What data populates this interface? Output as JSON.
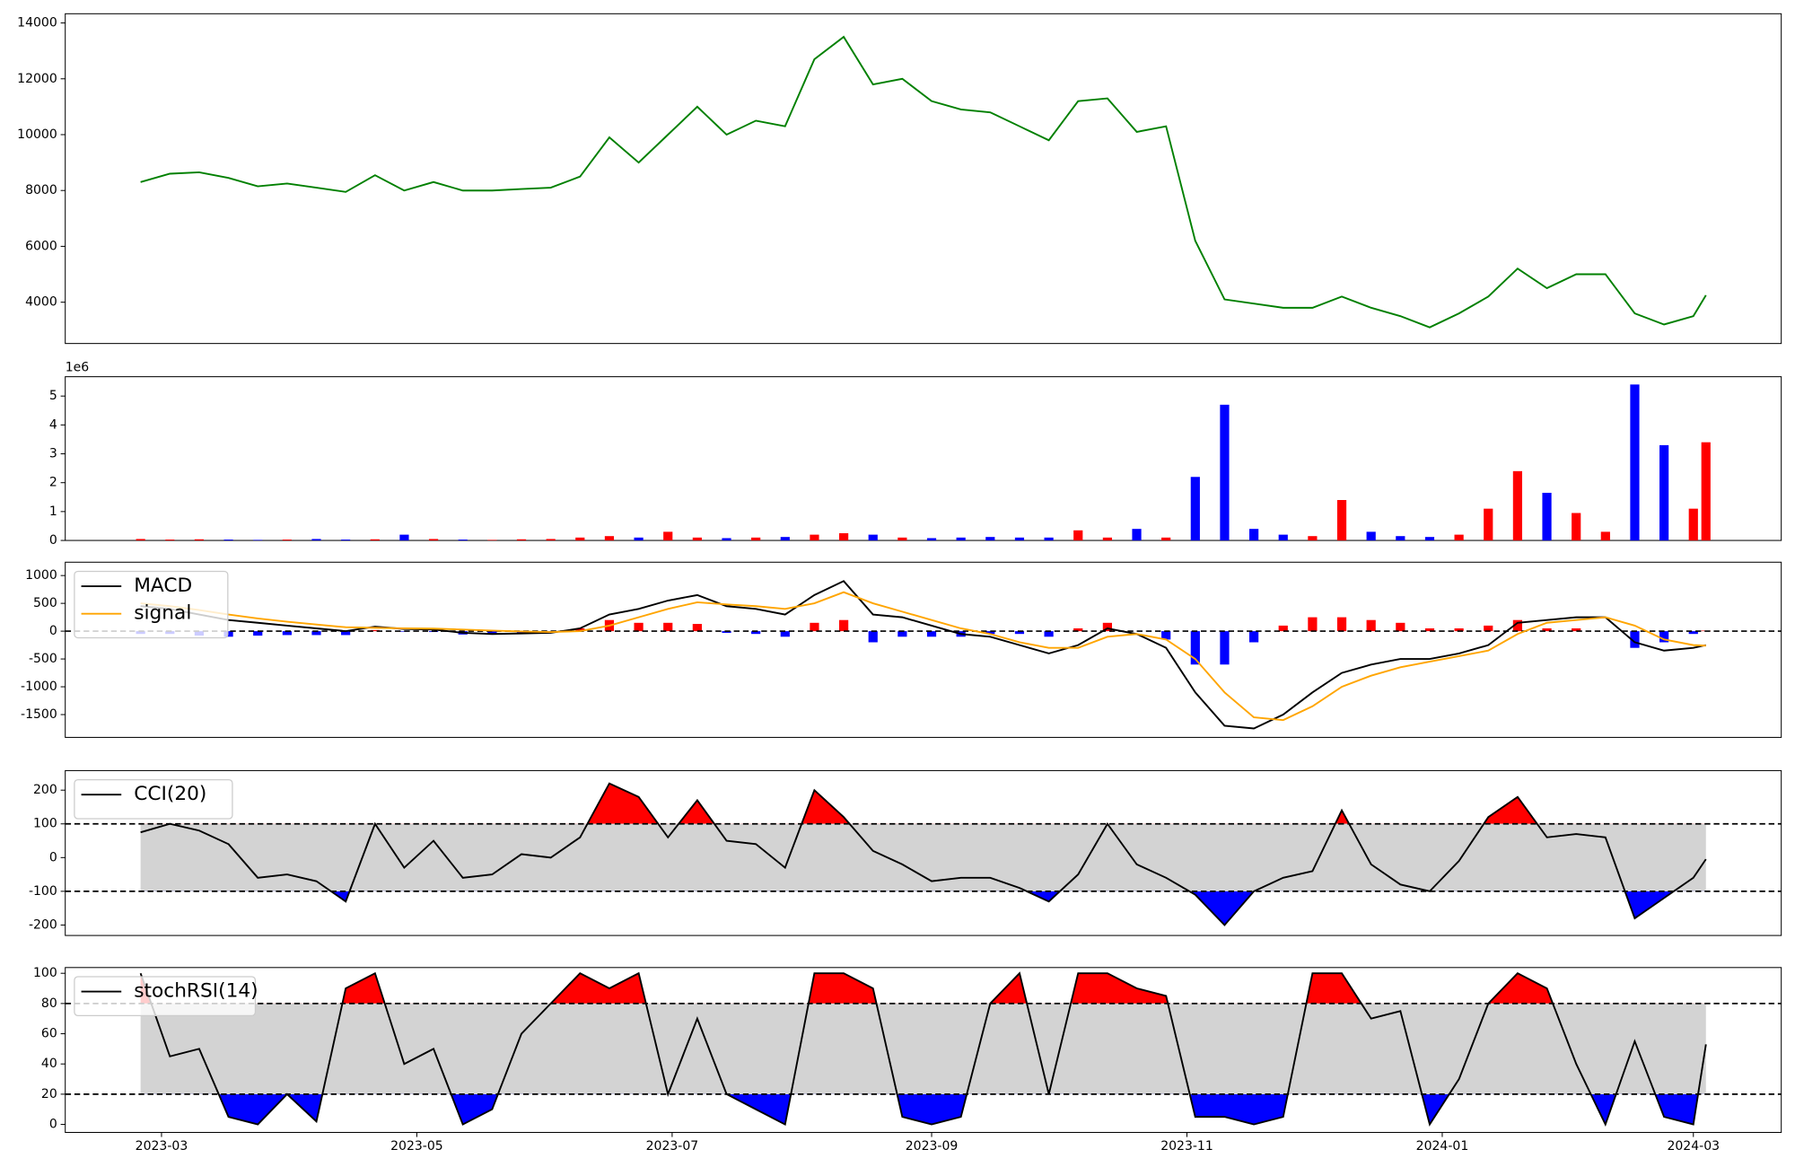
{
  "chart_data": {
    "type": "panels",
    "x": [
      "2023-02-24",
      "2023-03-03",
      "2023-03-10",
      "2023-03-17",
      "2023-03-24",
      "2023-03-31",
      "2023-04-07",
      "2023-04-14",
      "2023-04-21",
      "2023-04-28",
      "2023-05-05",
      "2023-05-12",
      "2023-05-19",
      "2023-05-26",
      "2023-06-02",
      "2023-06-09",
      "2023-06-16",
      "2023-06-23",
      "2023-06-30",
      "2023-07-07",
      "2023-07-14",
      "2023-07-21",
      "2023-07-28",
      "2023-08-04",
      "2023-08-11",
      "2023-08-18",
      "2023-08-25",
      "2023-09-01",
      "2023-09-08",
      "2023-09-15",
      "2023-09-22",
      "2023-09-29",
      "2023-10-06",
      "2023-10-13",
      "2023-10-20",
      "2023-10-27",
      "2023-11-03",
      "2023-11-10",
      "2023-11-17",
      "2023-11-24",
      "2023-12-01",
      "2023-12-08",
      "2023-12-15",
      "2023-12-22",
      "2023-12-29",
      "2024-01-05",
      "2024-01-12",
      "2024-01-19",
      "2024-01-26",
      "2024-02-02",
      "2024-02-09",
      "2024-02-16",
      "2024-02-23",
      "2024-03-01",
      "2024-03-04"
    ],
    "xlim": [
      "2023-02-06",
      "2024-03-22"
    ],
    "xticks": [
      {
        "value": "2023-03-01",
        "label": "2023-03"
      },
      {
        "value": "2023-05-01",
        "label": "2023-05"
      },
      {
        "value": "2023-07-01",
        "label": "2023-07"
      },
      {
        "value": "2023-09-01",
        "label": "2023-09"
      },
      {
        "value": "2023-11-01",
        "label": "2023-11"
      },
      {
        "value": "2024-01-01",
        "label": "2024-01"
      },
      {
        "value": "2024-03-01",
        "label": "2024-03"
      }
    ],
    "panels": [
      {
        "type": "line",
        "series": [
          {
            "color": "green",
            "values": [
              8300,
              8600,
              8650,
              8450,
              8150,
              8250,
              8100,
              7950,
              8550,
              8000,
              8300,
              8000,
              8000,
              8050,
              8100,
              8500,
              9900,
              9000,
              10000,
              11000,
              10000,
              10500,
              10300,
              12700,
              13500,
              11800,
              12000,
              11200,
              10900,
              10800,
              10300,
              9800,
              11200,
              11300,
              10100,
              10300,
              6200,
              4100,
              3950,
              3800,
              3800,
              4200,
              3800,
              3500,
              3100,
              3600,
              4200,
              5200,
              4500,
              5000,
              5000,
              3600,
              3200,
              3500,
              4250
            ]
          }
        ],
        "ylim": [
          2520,
          14330
        ],
        "yticks": [
          4000,
          6000,
          8000,
          10000,
          12000,
          14000
        ]
      },
      {
        "type": "volume",
        "offset_label": "1e6",
        "up_color": "red",
        "down_color": "blue",
        "values": [
          0.05,
          0.03,
          0.04,
          0.03,
          0.02,
          0.03,
          0.05,
          0.03,
          0.04,
          0.2,
          0.05,
          0.03,
          0.02,
          0.04,
          0.05,
          0.1,
          0.15,
          0.1,
          0.3,
          0.1,
          0.08,
          0.1,
          0.12,
          0.2,
          0.25,
          0.2,
          0.1,
          0.08,
          0.1,
          0.12,
          0.1,
          0.1,
          0.35,
          0.1,
          0.4,
          0.1,
          2.2,
          4.7,
          0.4,
          0.2,
          0.15,
          1.4,
          0.3,
          0.15,
          0.12,
          0.2,
          1.1,
          2.4,
          1.65,
          0.95,
          0.3,
          5.4,
          3.3,
          1.1,
          3.4
        ],
        "ylim": [
          0,
          5.67
        ],
        "yticks": [
          0,
          1,
          2,
          3,
          4,
          5
        ]
      },
      {
        "type": "macd",
        "legend": "upper left",
        "reference_line": 0,
        "series": [
          {
            "name": "MACD",
            "color": "black",
            "values": [
              450,
              400,
              300,
              200,
              150,
              100,
              50,
              0,
              80,
              40,
              30,
              -30,
              -50,
              -40,
              -30,
              50,
              300,
              400,
              550,
              650,
              450,
              400,
              300,
              650,
              900,
              300,
              250,
              100,
              -50,
              -100,
              -250,
              -400,
              -250,
              50,
              -50,
              -300,
              -1100,
              -1700,
              -1750,
              -1500,
              -1100,
              -750,
              -600,
              -500,
              -500,
              -400,
              -250,
              150,
              200,
              250,
              250,
              -200,
              -350,
              -300,
              -250
            ]
          },
          {
            "name": "signal",
            "color": "orange",
            "values": [
              500,
              450,
              380,
              300,
              230,
              170,
              120,
              70,
              60,
              50,
              45,
              30,
              10,
              -5,
              -15,
              0,
              100,
              250,
              400,
              520,
              480,
              450,
              400,
              500,
              700,
              500,
              350,
              200,
              50,
              -50,
              -200,
              -300,
              -300,
              -100,
              -50,
              -150,
              -500,
              -1100,
              -1550,
              -1600,
              -1350,
              -1000,
              -800,
              -650,
              -550,
              -450,
              -350,
              -50,
              150,
              200,
              250,
              100,
              -150,
              -250,
              -260
            ]
          }
        ],
        "histogram": {
          "up_color": "red",
          "down_color": "blue",
          "values": [
            -50,
            -50,
            -80,
            -100,
            -80,
            -70,
            -70,
            -70,
            20,
            -10,
            -15,
            -60,
            -60,
            -35,
            -15,
            50,
            200,
            150,
            150,
            130,
            -30,
            -50,
            -100,
            150,
            200,
            -200,
            -100,
            -100,
            -100,
            -50,
            -50,
            -100,
            50,
            150,
            0,
            -150,
            -600,
            -600,
            -200,
            100,
            250,
            250,
            200,
            150,
            50,
            50,
            100,
            200,
            50,
            50,
            0,
            -300,
            -200,
            -50,
            10
          ]
        },
        "ylim": [
          -1910,
          1240
        ],
        "yticks": [
          -1500,
          -1000,
          -500,
          0,
          500,
          1000
        ]
      },
      {
        "type": "band",
        "legend": "upper left",
        "thresholds": [
          -100,
          100
        ],
        "band_color": "lightgray",
        "high_color": "red",
        "low_color": "blue",
        "series": [
          {
            "name": "CCI(20)",
            "color": "black",
            "values": [
              75,
              100,
              80,
              40,
              -60,
              -50,
              -70,
              -130,
              100,
              -30,
              50,
              -60,
              -50,
              10,
              0,
              60,
              220,
              180,
              60,
              170,
              50,
              40,
              -30,
              200,
              120,
              20,
              -20,
              -70,
              -60,
              -60,
              -90,
              -130,
              -50,
              100,
              -20,
              -60,
              -110,
              -200,
              -100,
              -60,
              -40,
              140,
              -20,
              -80,
              -100,
              -10,
              120,
              180,
              60,
              70,
              60,
              -180,
              -120,
              -60,
              -5
            ]
          }
        ],
        "ylim": [
          -231,
          258
        ],
        "yticks": [
          -200,
          -100,
          0,
          100,
          200
        ]
      },
      {
        "type": "band",
        "legend": "upper left",
        "thresholds": [
          20,
          80
        ],
        "band_color": "lightgray",
        "high_color": "red",
        "low_color": "blue",
        "series": [
          {
            "name": "stochRSI(14)",
            "color": "black",
            "values": [
              100,
              45,
              50,
              5,
              0,
              20,
              2,
              90,
              100,
              40,
              50,
              0,
              10,
              60,
              80,
              100,
              90,
              100,
              20,
              70,
              20,
              10,
              0,
              100,
              100,
              90,
              5,
              0,
              5,
              80,
              100,
              20,
              100,
              100,
              90,
              85,
              5,
              5,
              0,
              5,
              100,
              100,
              70,
              75,
              0,
              30,
              80,
              100,
              90,
              40,
              0,
              55,
              5,
              0,
              53
            ]
          }
        ],
        "ylim": [
          -5.3,
          103.8
        ],
        "yticks": [
          0,
          20,
          40,
          60,
          80,
          100
        ]
      }
    ]
  }
}
